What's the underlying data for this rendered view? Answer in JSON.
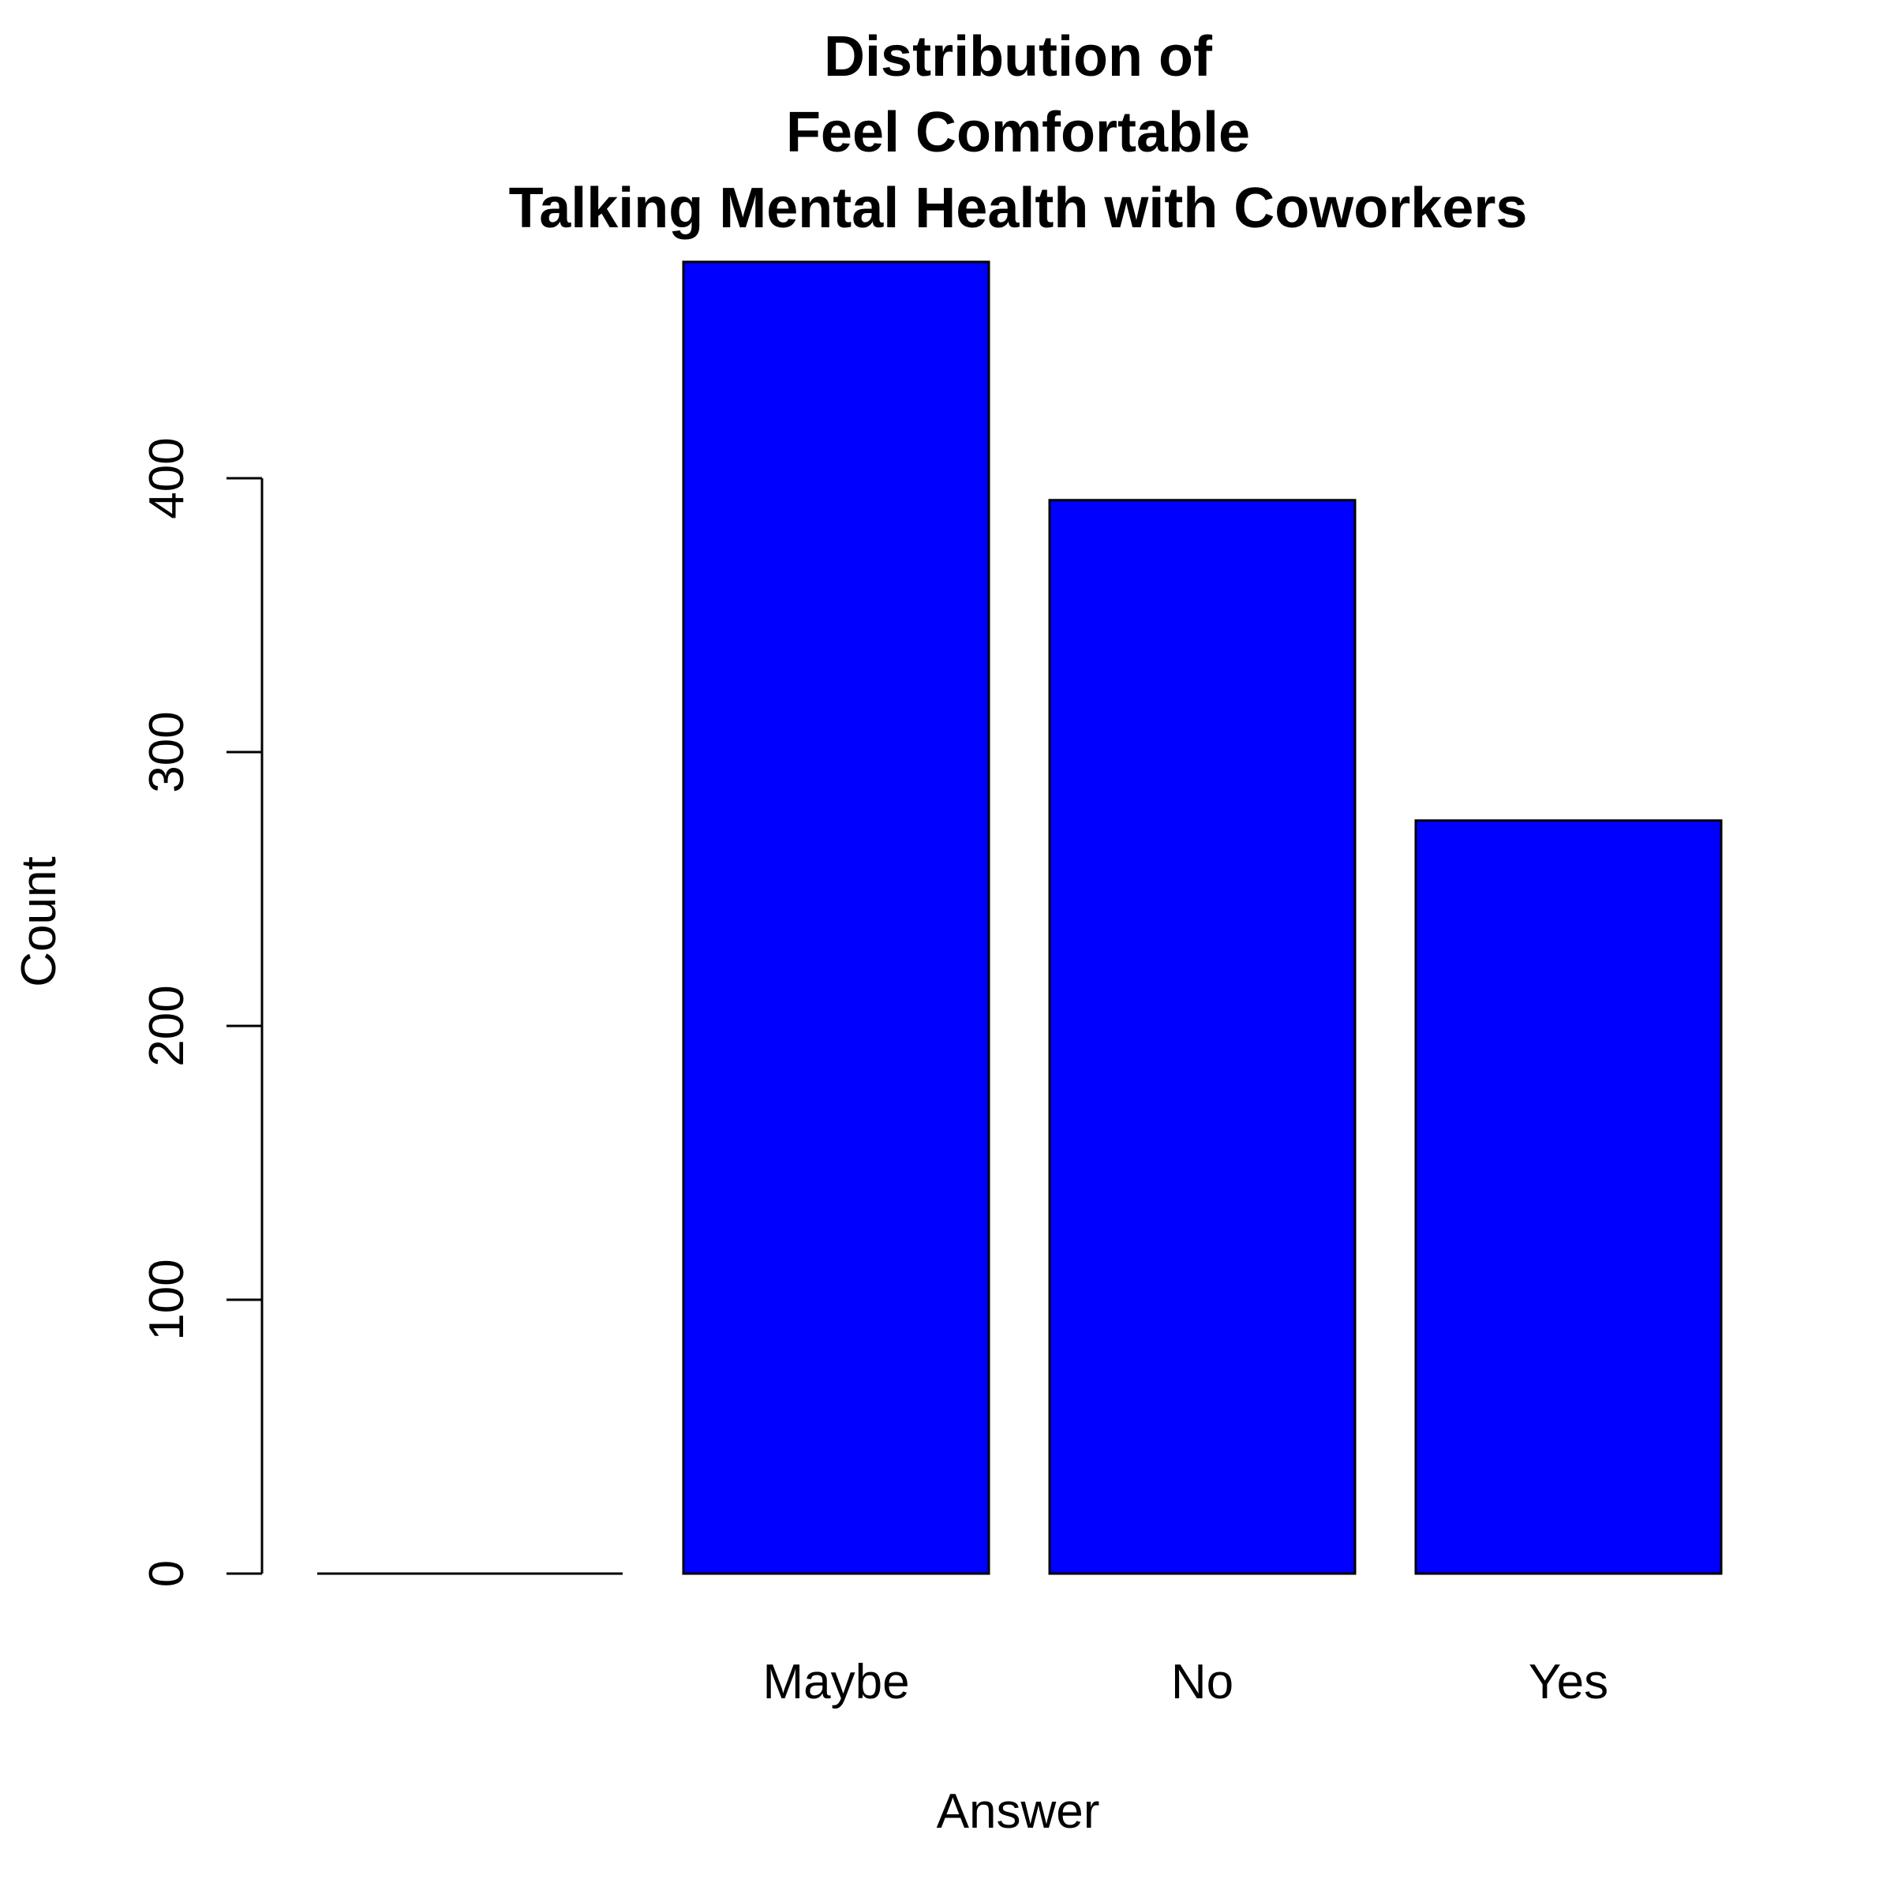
{
  "chart_data": {
    "type": "bar",
    "title_lines": [
      "Distribution of",
      "Feel Comfortable",
      "Talking Mental Health with Coworkers"
    ],
    "xlabel": "Answer",
    "ylabel": "Count",
    "categories": [
      "",
      "Maybe",
      "No",
      "Yes"
    ],
    "values": [
      0,
      479,
      392,
      275
    ],
    "yticks": [
      0,
      100,
      200,
      300,
      400
    ],
    "ylim": [
      0,
      479
    ],
    "bar_color": "#0000ff",
    "grid": false
  }
}
